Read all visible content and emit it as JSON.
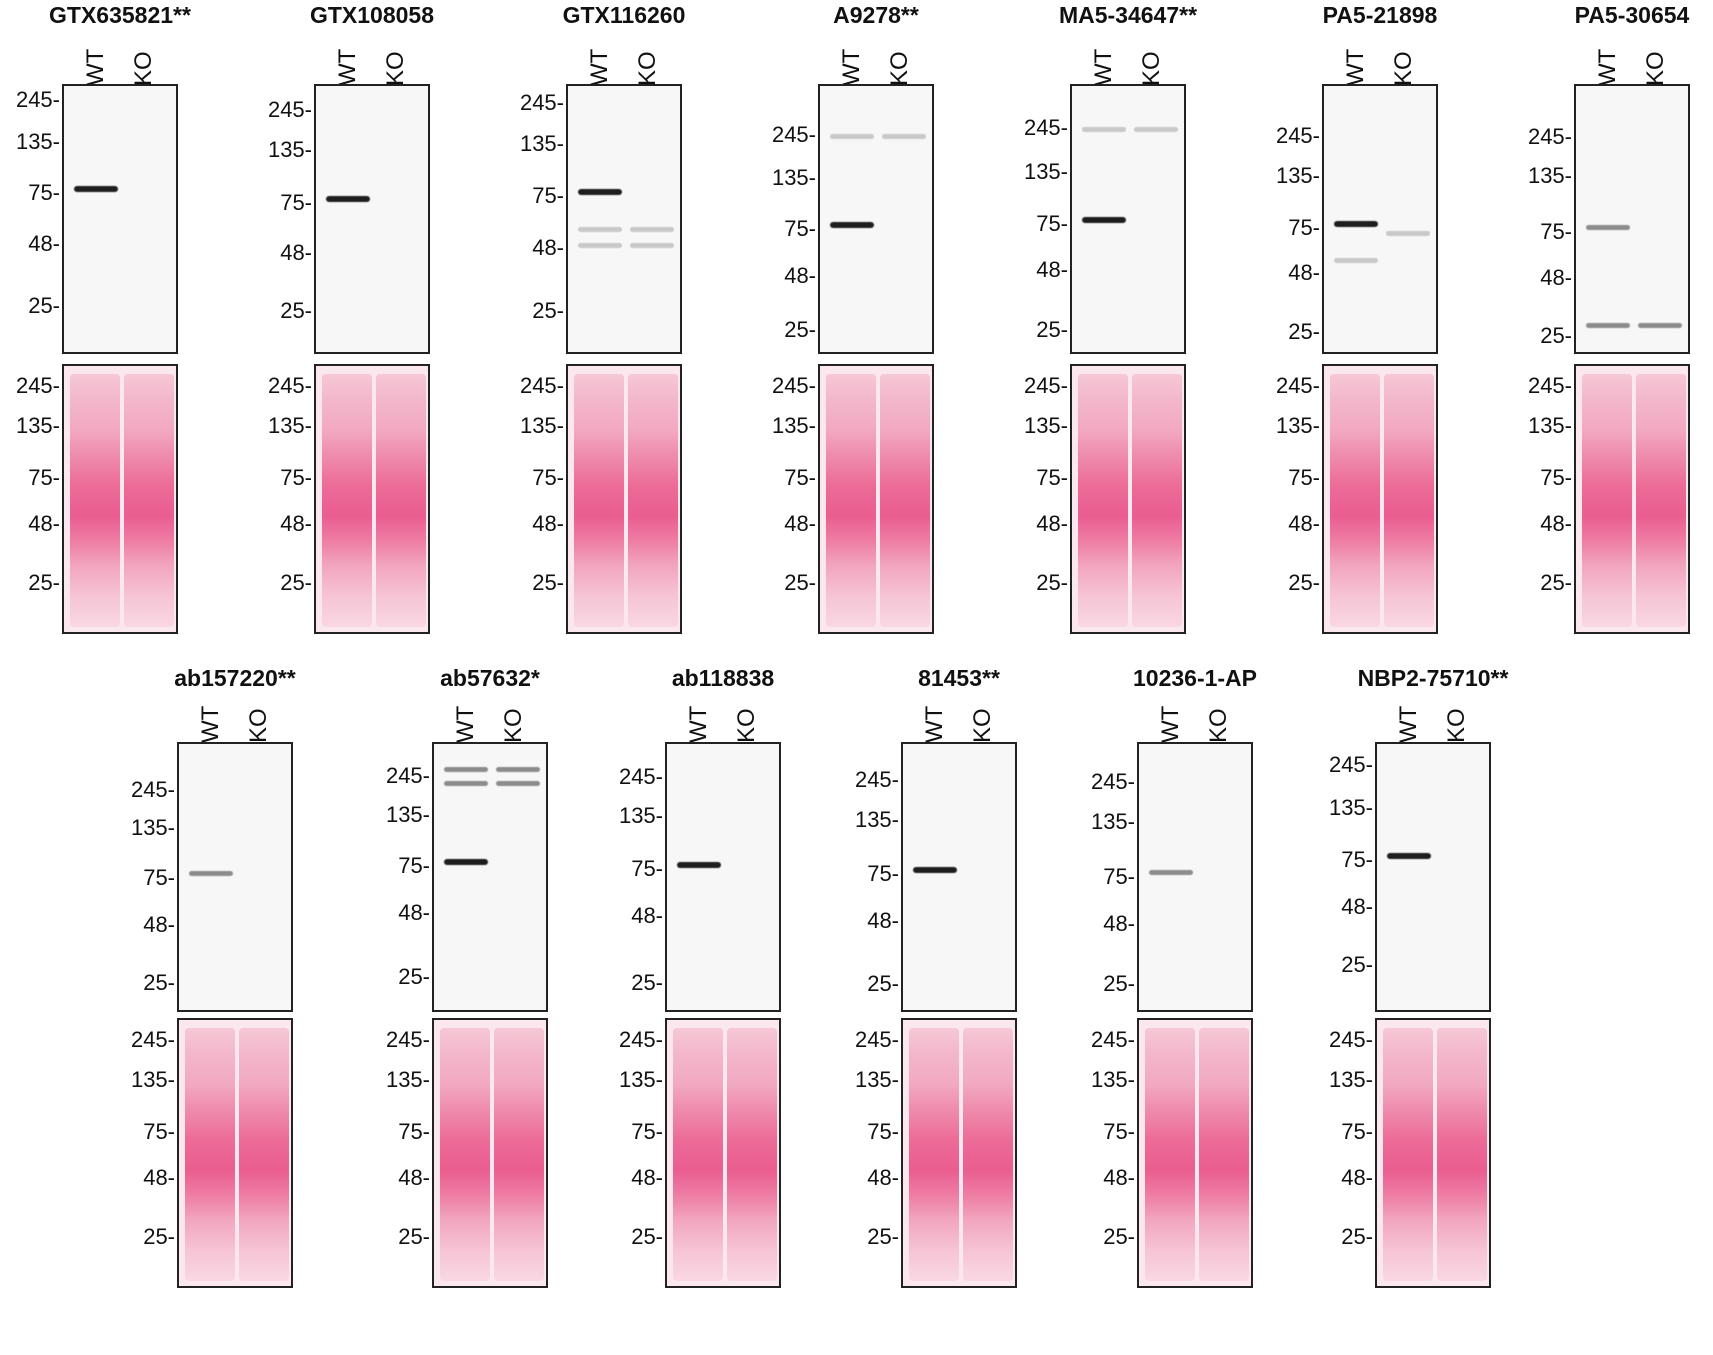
{
  "lane_labels": {
    "wt": "WT",
    "ko": "KO"
  },
  "mw_markers": [
    "245",
    "135",
    "75",
    "48",
    "25"
  ],
  "antibodies": [
    {
      "name": "GTX635821**",
      "row": 1,
      "wt_band": "strong",
      "extra_bands": "none"
    },
    {
      "name": "GTX108058",
      "row": 1,
      "wt_band": "strong",
      "extra_bands": "none"
    },
    {
      "name": "GTX116260",
      "row": 1,
      "wt_band": "strong",
      "extra_bands": "nonspecific"
    },
    {
      "name": "A9278**",
      "row": 1,
      "wt_band": "strong",
      "extra_bands": "faint-high"
    },
    {
      "name": "MA5-34647**",
      "row": 1,
      "wt_band": "strong",
      "extra_bands": "faint-high"
    },
    {
      "name": "PA5-21898",
      "row": 1,
      "wt_band": "strong",
      "extra_bands": "faint"
    },
    {
      "name": "PA5-30654",
      "row": 1,
      "wt_band": "medium",
      "extra_bands": "low-both"
    },
    {
      "name": "ab157220**",
      "row": 2,
      "wt_band": "medium",
      "extra_bands": "none"
    },
    {
      "name": "ab57632*",
      "row": 2,
      "wt_band": "strong",
      "extra_bands": "high-both"
    },
    {
      "name": "ab118838",
      "row": 2,
      "wt_band": "strong",
      "extra_bands": "none"
    },
    {
      "name": "81453**",
      "row": 2,
      "wt_band": "strong",
      "extra_bands": "none"
    },
    {
      "name": "10236-1-AP",
      "row": 2,
      "wt_band": "medium",
      "extra_bands": "none"
    },
    {
      "name": "NBP2-75710**",
      "row": 2,
      "wt_band": "strong",
      "extra_bands": "none"
    }
  ]
}
